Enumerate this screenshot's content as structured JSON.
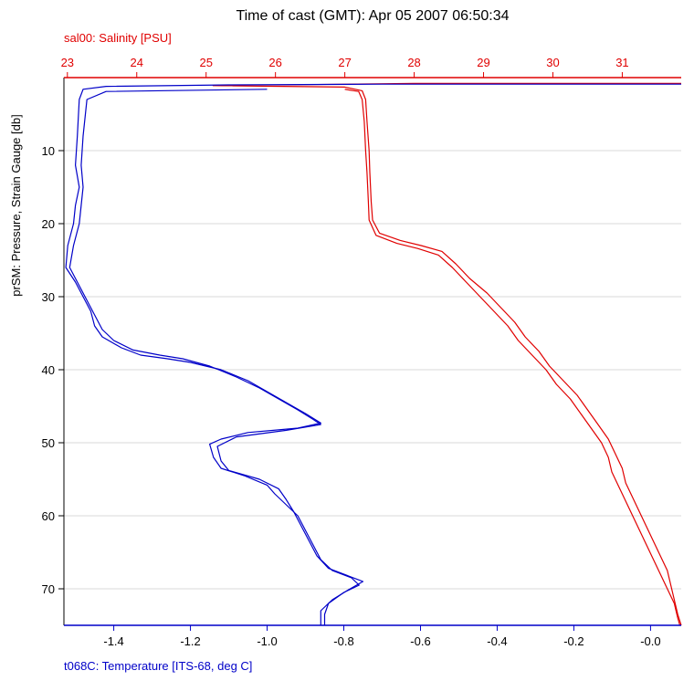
{
  "chart_data": {
    "type": "line",
    "title": "Time of cast (GMT): Apr 05 2007 06:50:34",
    "y_axis": {
      "label": "prSM: Pressure, Strain Gauge [db]",
      "range": [
        0,
        75
      ],
      "inverted": true,
      "ticks": [
        10,
        20,
        30,
        40,
        50,
        60,
        70
      ]
    },
    "x_axis_top": {
      "label": "sal00: Salinity [PSU]",
      "color": "#e00000",
      "range": [
        22.95,
        31.85
      ],
      "ticks": [
        23,
        24,
        25,
        26,
        27,
        28,
        29,
        30,
        31
      ]
    },
    "x_axis_bottom": {
      "label": "t068C: Temperature [ITS-68, deg C]",
      "color": "#0000c8",
      "range": [
        -1.53,
        0.08
      ],
      "ticks": [
        -1.4,
        -1.2,
        -1.0,
        -0.8,
        -0.6,
        -0.4,
        -0.2,
        0.0
      ],
      "tick_labels": [
        "-1.4",
        "-1.2",
        "-1.0",
        "-0.8",
        "-0.6",
        "-0.4",
        "-0.2",
        "-0.0"
      ]
    },
    "grid": "horizontal",
    "series": [
      {
        "name": "sal00: Salinity [PSU]",
        "axis": "top",
        "color": "#e00000",
        "points": [
          [
            31.85,
            0.8
          ],
          [
            28.0,
            0.8
          ],
          [
            25.1,
            1.1
          ],
          [
            27.0,
            1.3
          ],
          [
            27.25,
            1.8
          ],
          [
            27.3,
            3
          ],
          [
            27.32,
            6
          ],
          [
            27.35,
            10
          ],
          [
            27.36,
            13
          ],
          [
            27.38,
            17
          ],
          [
            27.4,
            19.5
          ],
          [
            27.5,
            21.3
          ],
          [
            27.8,
            22.3
          ],
          [
            28.1,
            23
          ],
          [
            28.4,
            23.8
          ],
          [
            28.6,
            25.5
          ],
          [
            28.8,
            27.5
          ],
          [
            29.05,
            29.5
          ],
          [
            29.25,
            31.5
          ],
          [
            29.45,
            33.5
          ],
          [
            29.6,
            35.5
          ],
          [
            29.8,
            37.5
          ],
          [
            29.95,
            39.5
          ],
          [
            30.15,
            41.5
          ],
          [
            30.35,
            43.5
          ],
          [
            30.5,
            45.5
          ],
          [
            30.65,
            47.5
          ],
          [
            30.8,
            49.5
          ],
          [
            30.9,
            51.5
          ],
          [
            31.0,
            53.5
          ],
          [
            31.05,
            55.5
          ],
          [
            31.15,
            57.5
          ],
          [
            31.25,
            59.5
          ],
          [
            31.35,
            61.5
          ],
          [
            31.45,
            63.5
          ],
          [
            31.55,
            65.5
          ],
          [
            31.65,
            67.5
          ],
          [
            31.7,
            69.5
          ],
          [
            31.75,
            71.5
          ],
          [
            31.8,
            73.5
          ],
          [
            31.85,
            75
          ]
        ],
        "points_return": [
          [
            27.0,
            1.6
          ],
          [
            27.2,
            1.9
          ],
          [
            27.25,
            3
          ],
          [
            27.28,
            6
          ],
          [
            27.3,
            10
          ],
          [
            27.32,
            13
          ],
          [
            27.34,
            17
          ],
          [
            27.35,
            19.5
          ],
          [
            27.45,
            21.6
          ],
          [
            27.75,
            22.7
          ],
          [
            28.05,
            23.4
          ],
          [
            28.35,
            24.3
          ],
          [
            28.55,
            26
          ],
          [
            28.75,
            28
          ],
          [
            28.95,
            30
          ],
          [
            29.15,
            32
          ],
          [
            29.35,
            34
          ],
          [
            29.5,
            36
          ],
          [
            29.7,
            38
          ],
          [
            29.9,
            40
          ],
          [
            30.05,
            42
          ],
          [
            30.25,
            44
          ],
          [
            30.4,
            46
          ],
          [
            30.55,
            48
          ],
          [
            30.7,
            50
          ],
          [
            30.8,
            52
          ],
          [
            30.85,
            54
          ],
          [
            30.95,
            56
          ],
          [
            31.05,
            58
          ],
          [
            31.15,
            60
          ],
          [
            31.25,
            62
          ],
          [
            31.35,
            64
          ],
          [
            31.45,
            66
          ],
          [
            31.55,
            68
          ],
          [
            31.65,
            70
          ],
          [
            31.75,
            72
          ],
          [
            31.8,
            74
          ],
          [
            31.83,
            75
          ]
        ]
      },
      {
        "name": "t068C: Temperature [ITS-68, deg C]",
        "axis": "bottom",
        "color": "#0000c8",
        "points": [
          [
            0.08,
            0.9
          ],
          [
            -0.7,
            0.9
          ],
          [
            -1.1,
            1.0
          ],
          [
            -1.42,
            1.2
          ],
          [
            -1.48,
            1.6
          ],
          [
            -1.49,
            3
          ],
          [
            -1.495,
            8
          ],
          [
            -1.5,
            12
          ],
          [
            -1.49,
            15
          ],
          [
            -1.5,
            17.5
          ],
          [
            -1.505,
            20
          ],
          [
            -1.52,
            23
          ],
          [
            -1.525,
            26
          ],
          [
            -1.5,
            28
          ],
          [
            -1.48,
            30
          ],
          [
            -1.46,
            32
          ],
          [
            -1.45,
            34
          ],
          [
            -1.43,
            35.5
          ],
          [
            -1.38,
            37
          ],
          [
            -1.33,
            38
          ],
          [
            -1.26,
            38.5
          ],
          [
            -1.2,
            39
          ],
          [
            -1.12,
            40
          ],
          [
            -1.05,
            41.5
          ],
          [
            -1.0,
            43
          ],
          [
            -0.95,
            44.5
          ],
          [
            -0.9,
            46
          ],
          [
            -0.86,
            47.3
          ],
          [
            -0.92,
            48
          ],
          [
            -1.05,
            48.6
          ],
          [
            -1.12,
            49.5
          ],
          [
            -1.15,
            50.2
          ],
          [
            -1.14,
            52
          ],
          [
            -1.12,
            53.5
          ],
          [
            -1.06,
            54.5
          ],
          [
            -1.0,
            55.8
          ],
          [
            -0.98,
            57
          ],
          [
            -0.95,
            58.5
          ],
          [
            -0.92,
            60
          ],
          [
            -0.9,
            62
          ],
          [
            -0.88,
            64
          ],
          [
            -0.86,
            66
          ],
          [
            -0.83,
            67.5
          ],
          [
            -0.78,
            68.5
          ],
          [
            -0.76,
            69.5
          ],
          [
            -0.8,
            70.5
          ],
          [
            -0.84,
            72
          ],
          [
            -0.85,
            73.5
          ],
          [
            -0.85,
            75
          ]
        ],
        "points_return": [
          [
            -1.0,
            1.6
          ],
          [
            -1.42,
            1.9
          ],
          [
            -1.47,
            3
          ],
          [
            -1.48,
            8
          ],
          [
            -1.485,
            12
          ],
          [
            -1.48,
            15
          ],
          [
            -1.485,
            17.5
          ],
          [
            -1.49,
            20
          ],
          [
            -1.505,
            23
          ],
          [
            -1.515,
            26
          ],
          [
            -1.49,
            28.5
          ],
          [
            -1.47,
            30.5
          ],
          [
            -1.45,
            32.5
          ],
          [
            -1.43,
            34.5
          ],
          [
            -1.4,
            36
          ],
          [
            -1.35,
            37.3
          ],
          [
            -1.28,
            38
          ],
          [
            -1.22,
            38.5
          ],
          [
            -1.15,
            39.5
          ],
          [
            -1.08,
            41
          ],
          [
            -1.02,
            42.5
          ],
          [
            -0.97,
            44
          ],
          [
            -0.92,
            45.5
          ],
          [
            -0.88,
            46.8
          ],
          [
            -0.86,
            47.5
          ],
          [
            -0.95,
            48.3
          ],
          [
            -1.08,
            49.2
          ],
          [
            -1.13,
            50.5
          ],
          [
            -1.12,
            52.5
          ],
          [
            -1.1,
            53.8
          ],
          [
            -1.02,
            55
          ],
          [
            -0.97,
            56.3
          ],
          [
            -0.95,
            57.8
          ],
          [
            -0.93,
            59.5
          ],
          [
            -0.91,
            61.5
          ],
          [
            -0.89,
            63.5
          ],
          [
            -0.87,
            65.5
          ],
          [
            -0.84,
            67.2
          ],
          [
            -0.79,
            68.2
          ],
          [
            -0.75,
            69
          ],
          [
            -0.79,
            70.2
          ],
          [
            -0.83,
            71.5
          ],
          [
            -0.86,
            73
          ],
          [
            -0.86,
            75
          ]
        ]
      }
    ]
  }
}
